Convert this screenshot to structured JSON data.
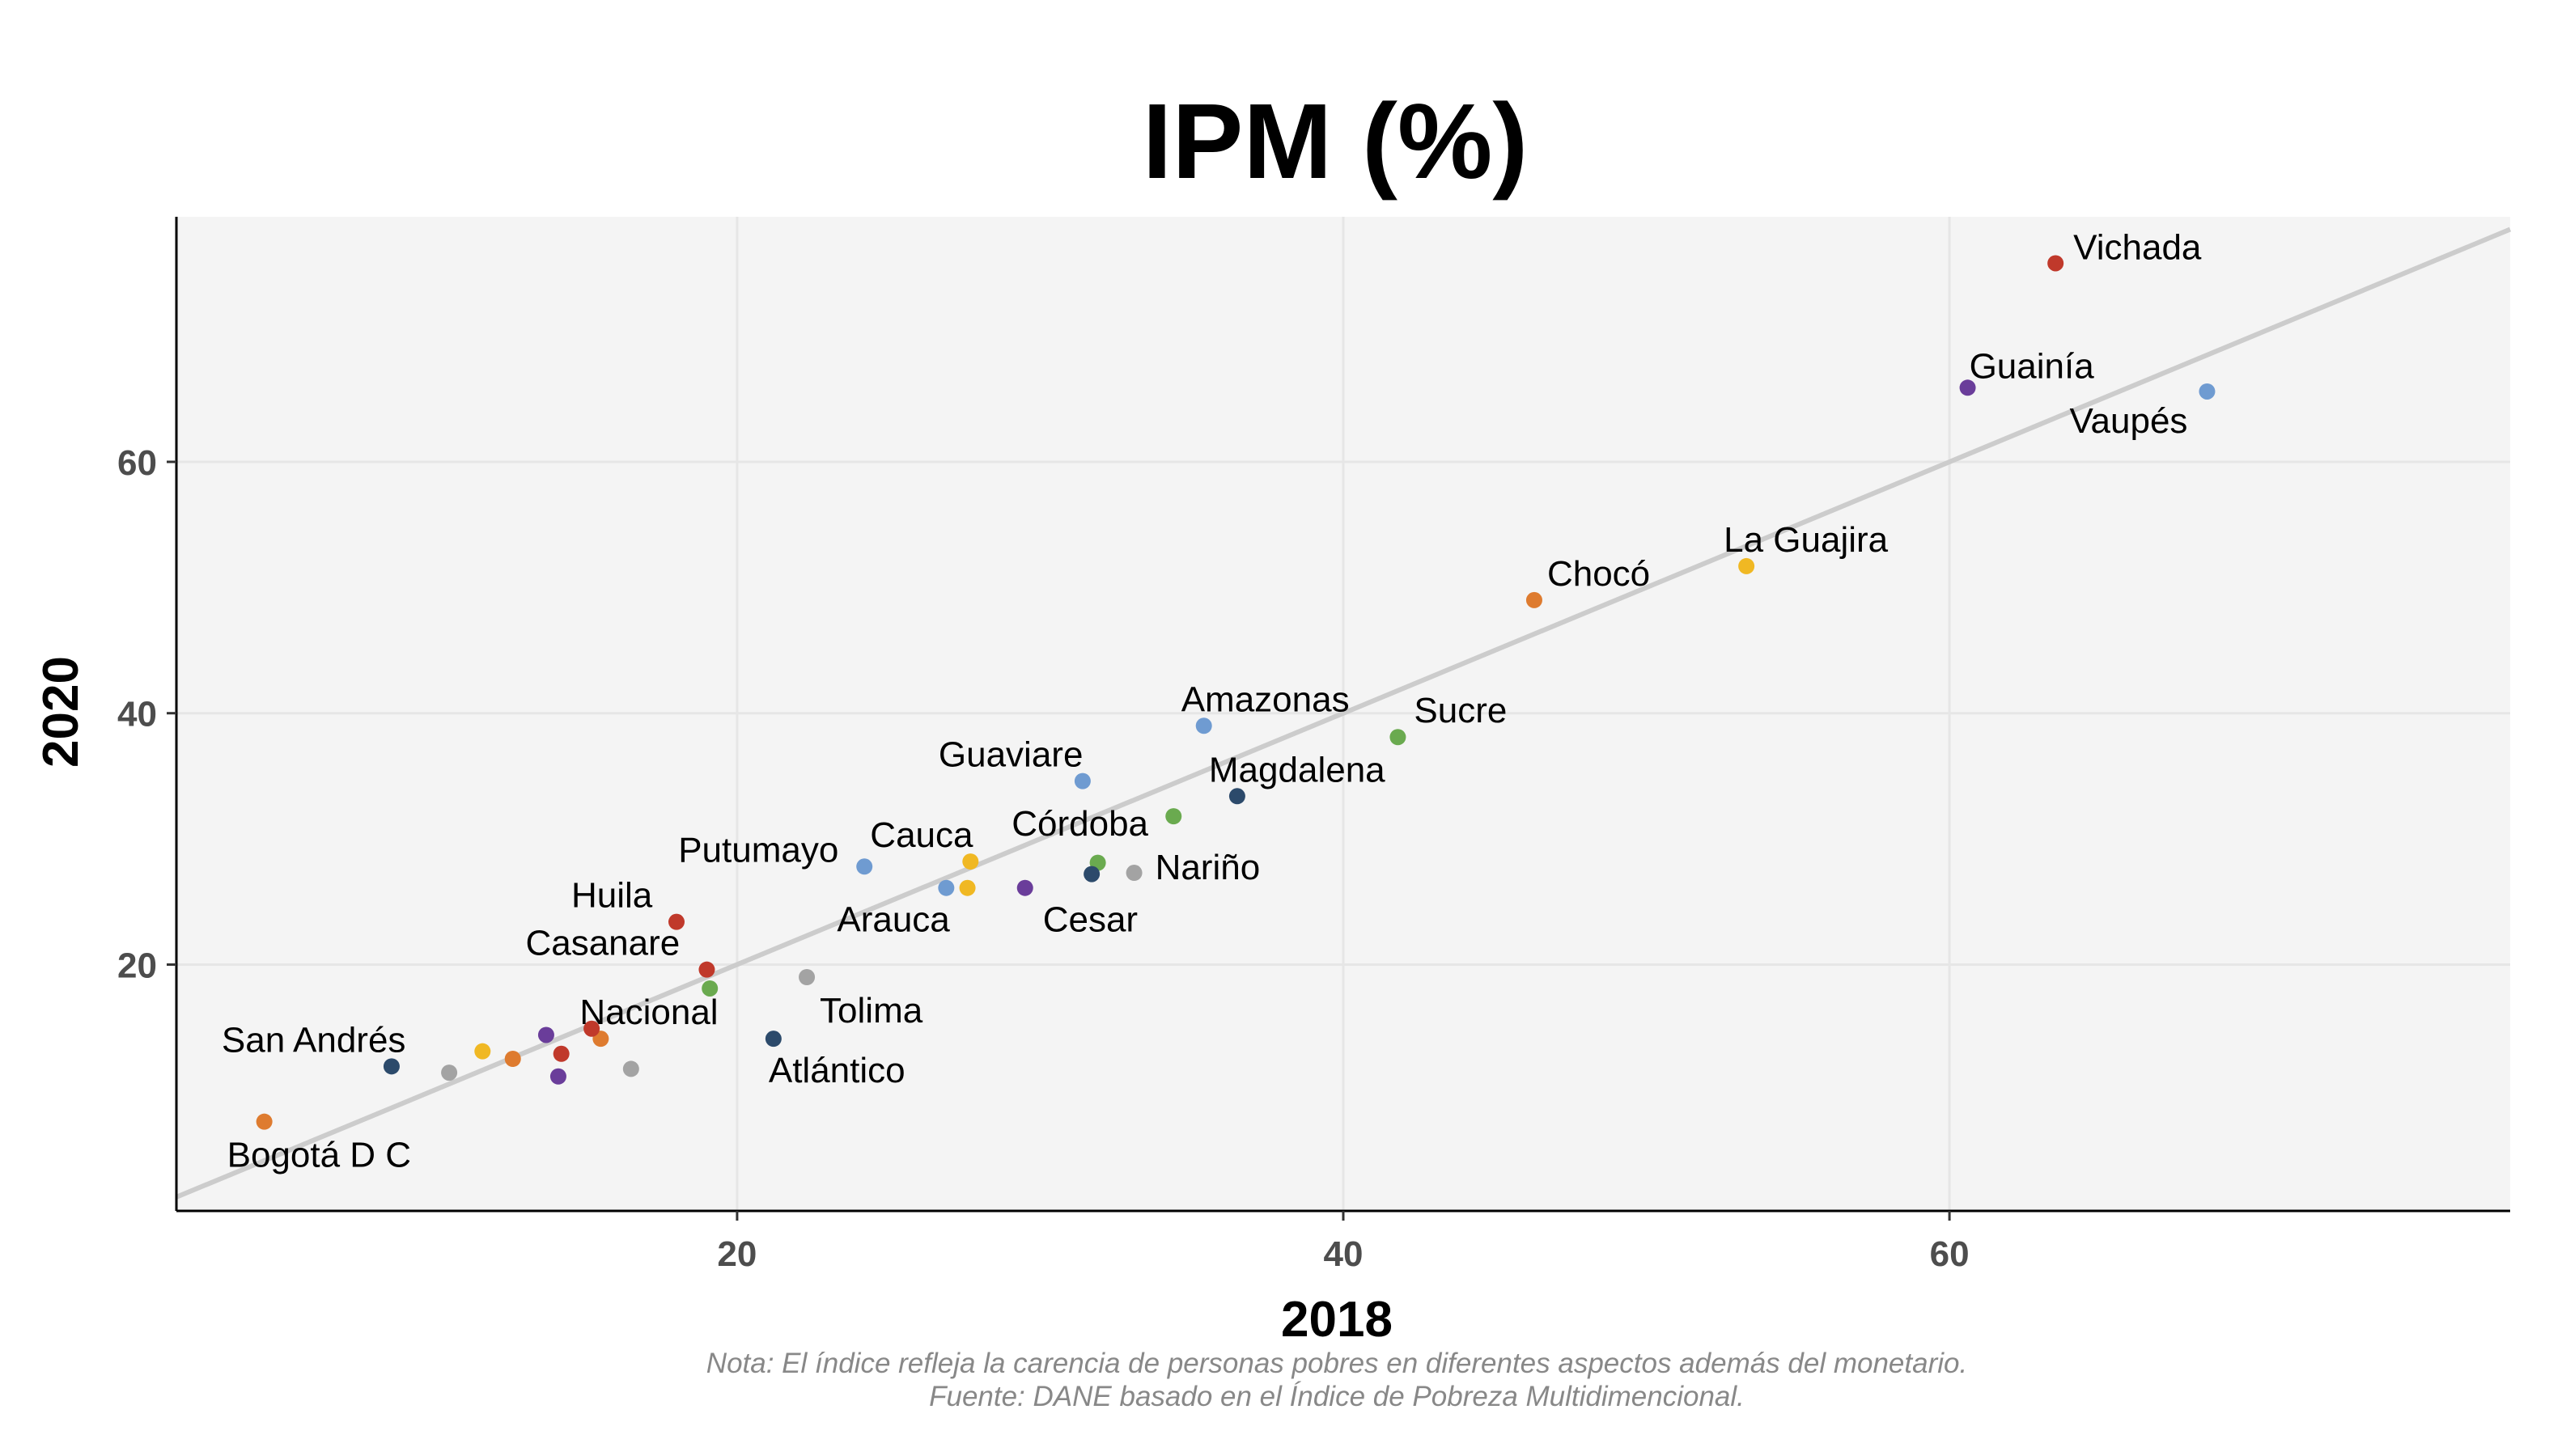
{
  "chart_data": {
    "type": "scatter",
    "title": "IPM (%)",
    "xlabel": "2018",
    "ylabel": "2020",
    "xlim": [
      1.5,
      78.5
    ],
    "ylim": [
      0.4,
      79.5
    ],
    "x_ticks": [
      20,
      40,
      60
    ],
    "y_ticks": [
      20,
      40,
      60
    ],
    "grid": true,
    "legend": "none",
    "reference_line": "y = x",
    "caption": [
      "Nota: El índice refleja la carencia de personas pobres en diferentes aspectos además del monetario.",
      "Fuente: DANE basado en el Índice de Pobreza Multidimencional."
    ],
    "colors": {
      "background": "#ffffff",
      "panel": "#f4f4f4",
      "grid": "#e6e6e6",
      "reference_line": "#cccccc",
      "axis": "#000000"
    },
    "points": [
      {
        "label": "Vichada",
        "x": 63.5,
        "y": 75.8,
        "color": "#c0392b"
      },
      {
        "label": "Guainía",
        "x": 60.6,
        "y": 65.9,
        "color": "#6a3d9a"
      },
      {
        "label": "Vaupés",
        "x": 68.5,
        "y": 65.6,
        "color": "#6f9bd1"
      },
      {
        "label": "La Guajira",
        "x": 53.3,
        "y": 51.7,
        "color": "#f0b823"
      },
      {
        "label": "Chocó",
        "x": 46.3,
        "y": 49.0,
        "color": "#de7b2f"
      },
      {
        "label": "Sucre",
        "x": 41.8,
        "y": 38.1,
        "color": "#6aaa4f"
      },
      {
        "label": "Amazonas",
        "x": 35.4,
        "y": 39.0,
        "color": "#6f9bd1"
      },
      {
        "label": "Magdalena",
        "x": 36.5,
        "y": 33.4,
        "color": "#2c4a6b"
      },
      {
        "label": "Guaviare",
        "x": 31.4,
        "y": 34.6,
        "color": "#6f9bd1"
      },
      {
        "label": "Córdoba",
        "x": 34.4,
        "y": 31.8,
        "color": "#6aaa4f"
      },
      {
        "label": "Nariño",
        "x": 33.1,
        "y": 27.3,
        "color": "#a3a3a3"
      },
      {
        "label": "",
        "x": 31.9,
        "y": 28.1,
        "color": "#6aaa4f"
      },
      {
        "label": "",
        "x": 31.7,
        "y": 27.2,
        "color": "#2c4a6b"
      },
      {
        "label": "Cesar",
        "x": 29.5,
        "y": 26.1,
        "color": "#6a3d9a"
      },
      {
        "label": "Cauca",
        "x": 27.7,
        "y": 28.2,
        "color": "#f0b823"
      },
      {
        "label": "",
        "x": 27.6,
        "y": 26.1,
        "color": "#f0b823"
      },
      {
        "label": "Arauca",
        "x": 26.9,
        "y": 26.1,
        "color": "#6f9bd1"
      },
      {
        "label": "Putumayo",
        "x": 24.2,
        "y": 27.8,
        "color": "#6f9bd1"
      },
      {
        "label": "Huila",
        "x": 18.0,
        "y": 23.4,
        "color": "#c0392b"
      },
      {
        "label": "Casanare",
        "x": 19.0,
        "y": 19.6,
        "color": "#c0392b"
      },
      {
        "label": "",
        "x": 19.1,
        "y": 18.1,
        "color": "#6aaa4f"
      },
      {
        "label": "Tolima",
        "x": 22.3,
        "y": 19.0,
        "color": "#a3a3a3"
      },
      {
        "label": "Atlántico",
        "x": 21.2,
        "y": 14.1,
        "color": "#2c4a6b"
      },
      {
        "label": "Nacional",
        "x": 15.5,
        "y": 14.1,
        "color": "#de7b2f"
      },
      {
        "label": "",
        "x": 15.2,
        "y": 14.9,
        "color": "#c0392b"
      },
      {
        "label": "",
        "x": 13.7,
        "y": 14.4,
        "color": "#6a3d9a"
      },
      {
        "label": "",
        "x": 14.2,
        "y": 12.9,
        "color": "#c0392b"
      },
      {
        "label": "",
        "x": 14.1,
        "y": 11.1,
        "color": "#6a3d9a"
      },
      {
        "label": "",
        "x": 16.5,
        "y": 11.7,
        "color": "#a3a3a3"
      },
      {
        "label": "",
        "x": 12.6,
        "y": 12.5,
        "color": "#de7b2f"
      },
      {
        "label": "",
        "x": 11.6,
        "y": 13.1,
        "color": "#f0b823"
      },
      {
        "label": "",
        "x": 10.5,
        "y": 11.4,
        "color": "#a3a3a3"
      },
      {
        "label": "San Andrés",
        "x": 8.6,
        "y": 11.9,
        "color": "#2c4a6b"
      },
      {
        "label": "Bogotá D C",
        "x": 4.4,
        "y": 7.5,
        "color": "#de7b2f"
      }
    ]
  }
}
